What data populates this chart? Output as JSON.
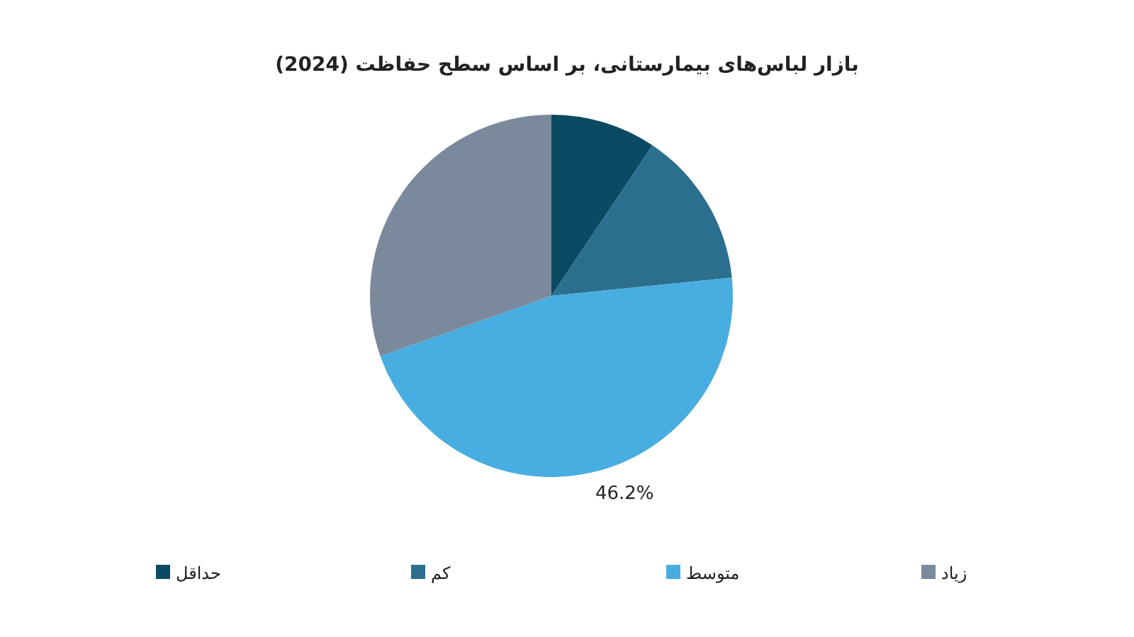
{
  "chart_data": {
    "type": "pie",
    "title": "بازار لباس‌های بیمارستانی، بر اساس سطح حفاظت (2024)",
    "categories": [
      "حداقل",
      "کم",
      "متوسط",
      "زیاد"
    ],
    "values": [
      9.4,
      14.0,
      46.2,
      30.4
    ],
    "colors": [
      "#0b4a63",
      "#2c6e8e",
      "#48ade0",
      "#7a8a9c"
    ],
    "value_labels": [
      null,
      null,
      "46.2%",
      null
    ],
    "legend": "bottom"
  }
}
